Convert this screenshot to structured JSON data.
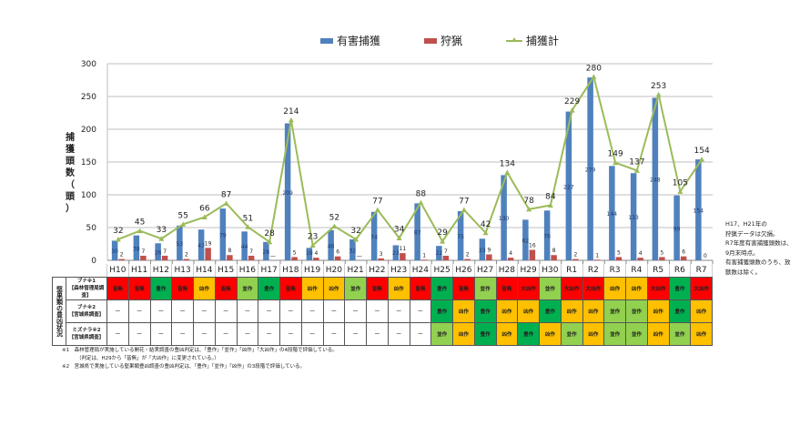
{
  "chart_data": {
    "type": "bar",
    "title": "",
    "ylabel": "捕獲頭数（頭）",
    "xlabel": "",
    "ylim": [
      0,
      300
    ],
    "yticks": [
      0,
      50,
      100,
      150,
      200,
      250,
      300
    ],
    "grid": true,
    "legend_position": "top",
    "categories": [
      "H10",
      "H11",
      "H12",
      "H13",
      "H14",
      "H15",
      "H16",
      "H17",
      "H18",
      "H19",
      "H20",
      "H21",
      "H22",
      "H23",
      "H24",
      "H25",
      "H26",
      "H27",
      "H28",
      "H29",
      "H30",
      "R1",
      "R2",
      "R3",
      "R4",
      "R5",
      "R6",
      "R7"
    ],
    "series": [
      {
        "name": "有害捕獲",
        "type": "bar",
        "color": "#4f81bd",
        "values": [
          30,
          38,
          26,
          53,
          47,
          79,
          44,
          28,
          209,
          19,
          46,
          32,
          74,
          23,
          87,
          22,
          75,
          33,
          130,
          62,
          76,
          227,
          279,
          144,
          133,
          248,
          99,
          154
        ]
      },
      {
        "name": "狩猟",
        "type": "bar",
        "color": "#c0504d",
        "values": [
          2,
          7,
          7,
          2,
          19,
          8,
          7,
          null,
          5,
          4,
          6,
          null,
          3,
          11,
          1,
          7,
          2,
          9,
          4,
          16,
          8,
          2,
          1,
          5,
          4,
          5,
          6,
          0
        ],
        "labels": [
          "2",
          "7",
          "7",
          "2",
          "19",
          "8",
          "7",
          "—",
          "5",
          "4",
          "6",
          "—",
          "3",
          "11",
          "1",
          "7",
          "2",
          "9",
          "4",
          "16",
          "8",
          "2",
          "1",
          "5",
          "4",
          "5",
          "6",
          "0"
        ]
      },
      {
        "name": "捕獲計",
        "type": "line",
        "color": "#9bbb59",
        "values": [
          32,
          45,
          33,
          55,
          66,
          87,
          51,
          28,
          214,
          23,
          52,
          32,
          77,
          34,
          88,
          29,
          77,
          42,
          134,
          78,
          84,
          229,
          280,
          149,
          137,
          253,
          105,
          154
        ]
      }
    ]
  },
  "legend": {
    "items": [
      {
        "label": "有害捕獲",
        "color": "#4f81bd"
      },
      {
        "label": "狩猟",
        "color": "#c0504d"
      },
      {
        "label": "捕獲計",
        "color": "#9bbb59"
      }
    ]
  },
  "axis": {
    "ylabel_chars": [
      "捕",
      "獲",
      "頭",
      "数",
      "（",
      "頭",
      "）"
    ]
  },
  "note": {
    "lines": [
      "H17、H21年の",
      "狩猟データは欠損。",
      "R7年度有害捕獲頭数は、",
      "9月末時点。",
      "有害捕獲頭数のうち、放",
      "獣数は除く。"
    ]
  },
  "status_table": {
    "vertical_header": "堅果類の豊凶状況",
    "colors": {
      "皆無": "#ff0000",
      "大凶作": "#ff0000",
      "凶作": "#ffc000",
      "並作": "#92d050",
      "豊作": "#00b050",
      "—": "#ffffff"
    },
    "rows": [
      {
        "label_line1": "ブナ※1",
        "label_line2": "【森林管理局調査】",
        "values": [
          "皆無",
          "皆無",
          "豊作",
          "皆無",
          "凶作",
          "皆無",
          "並作",
          "豊作",
          "皆無",
          "凶作",
          "凶作",
          "並作",
          "皆無",
          "凶作",
          "皆無",
          "豊作",
          "皆無",
          "並作",
          "皆無",
          "大凶作",
          "並作",
          "大凶作",
          "大凶作",
          "凶作",
          "凶作",
          "大凶作",
          "豊作",
          "大凶作"
        ]
      },
      {
        "label_line1": "ブナ※2",
        "label_line2": "【宮城県調査】",
        "values": [
          "—",
          "—",
          "—",
          "—",
          "—",
          "—",
          "—",
          "—",
          "—",
          "—",
          "—",
          "—",
          "—",
          "—",
          "—",
          "豊作",
          "凶作",
          "豊作",
          "凶作",
          "凶作",
          "豊作",
          "凶作",
          "凶作",
          "並作",
          "並作",
          "凶作",
          "豊作",
          "凶作"
        ]
      },
      {
        "label_line1": "ミズナラ※2",
        "label_line2": "【宮城県調査】",
        "values": [
          "—",
          "—",
          "—",
          "—",
          "—",
          "—",
          "—",
          "—",
          "—",
          "—",
          "—",
          "—",
          "—",
          "—",
          "—",
          "並作",
          "凶作",
          "豊作",
          "凶作",
          "豊作",
          "凶作",
          "並作",
          "凶作",
          "並作",
          "並作",
          "凶作",
          "並作",
          "凶作"
        ]
      }
    ]
  },
  "footnotes": {
    "n1": "※1　森林管理局が実施している開花・結実調査の豊凶判定は、「豊作」「並作」「凶作」「大凶作」の4段階で評価している。",
    "n1b": "（判定は、H29から「皆無」が「大凶作」に変更されている。）",
    "n2": "※2　宮城県で実施している堅果類豊凶調査の豊凶判定は、「豊作」「並作」「凶作」の3段階で評価している。"
  }
}
